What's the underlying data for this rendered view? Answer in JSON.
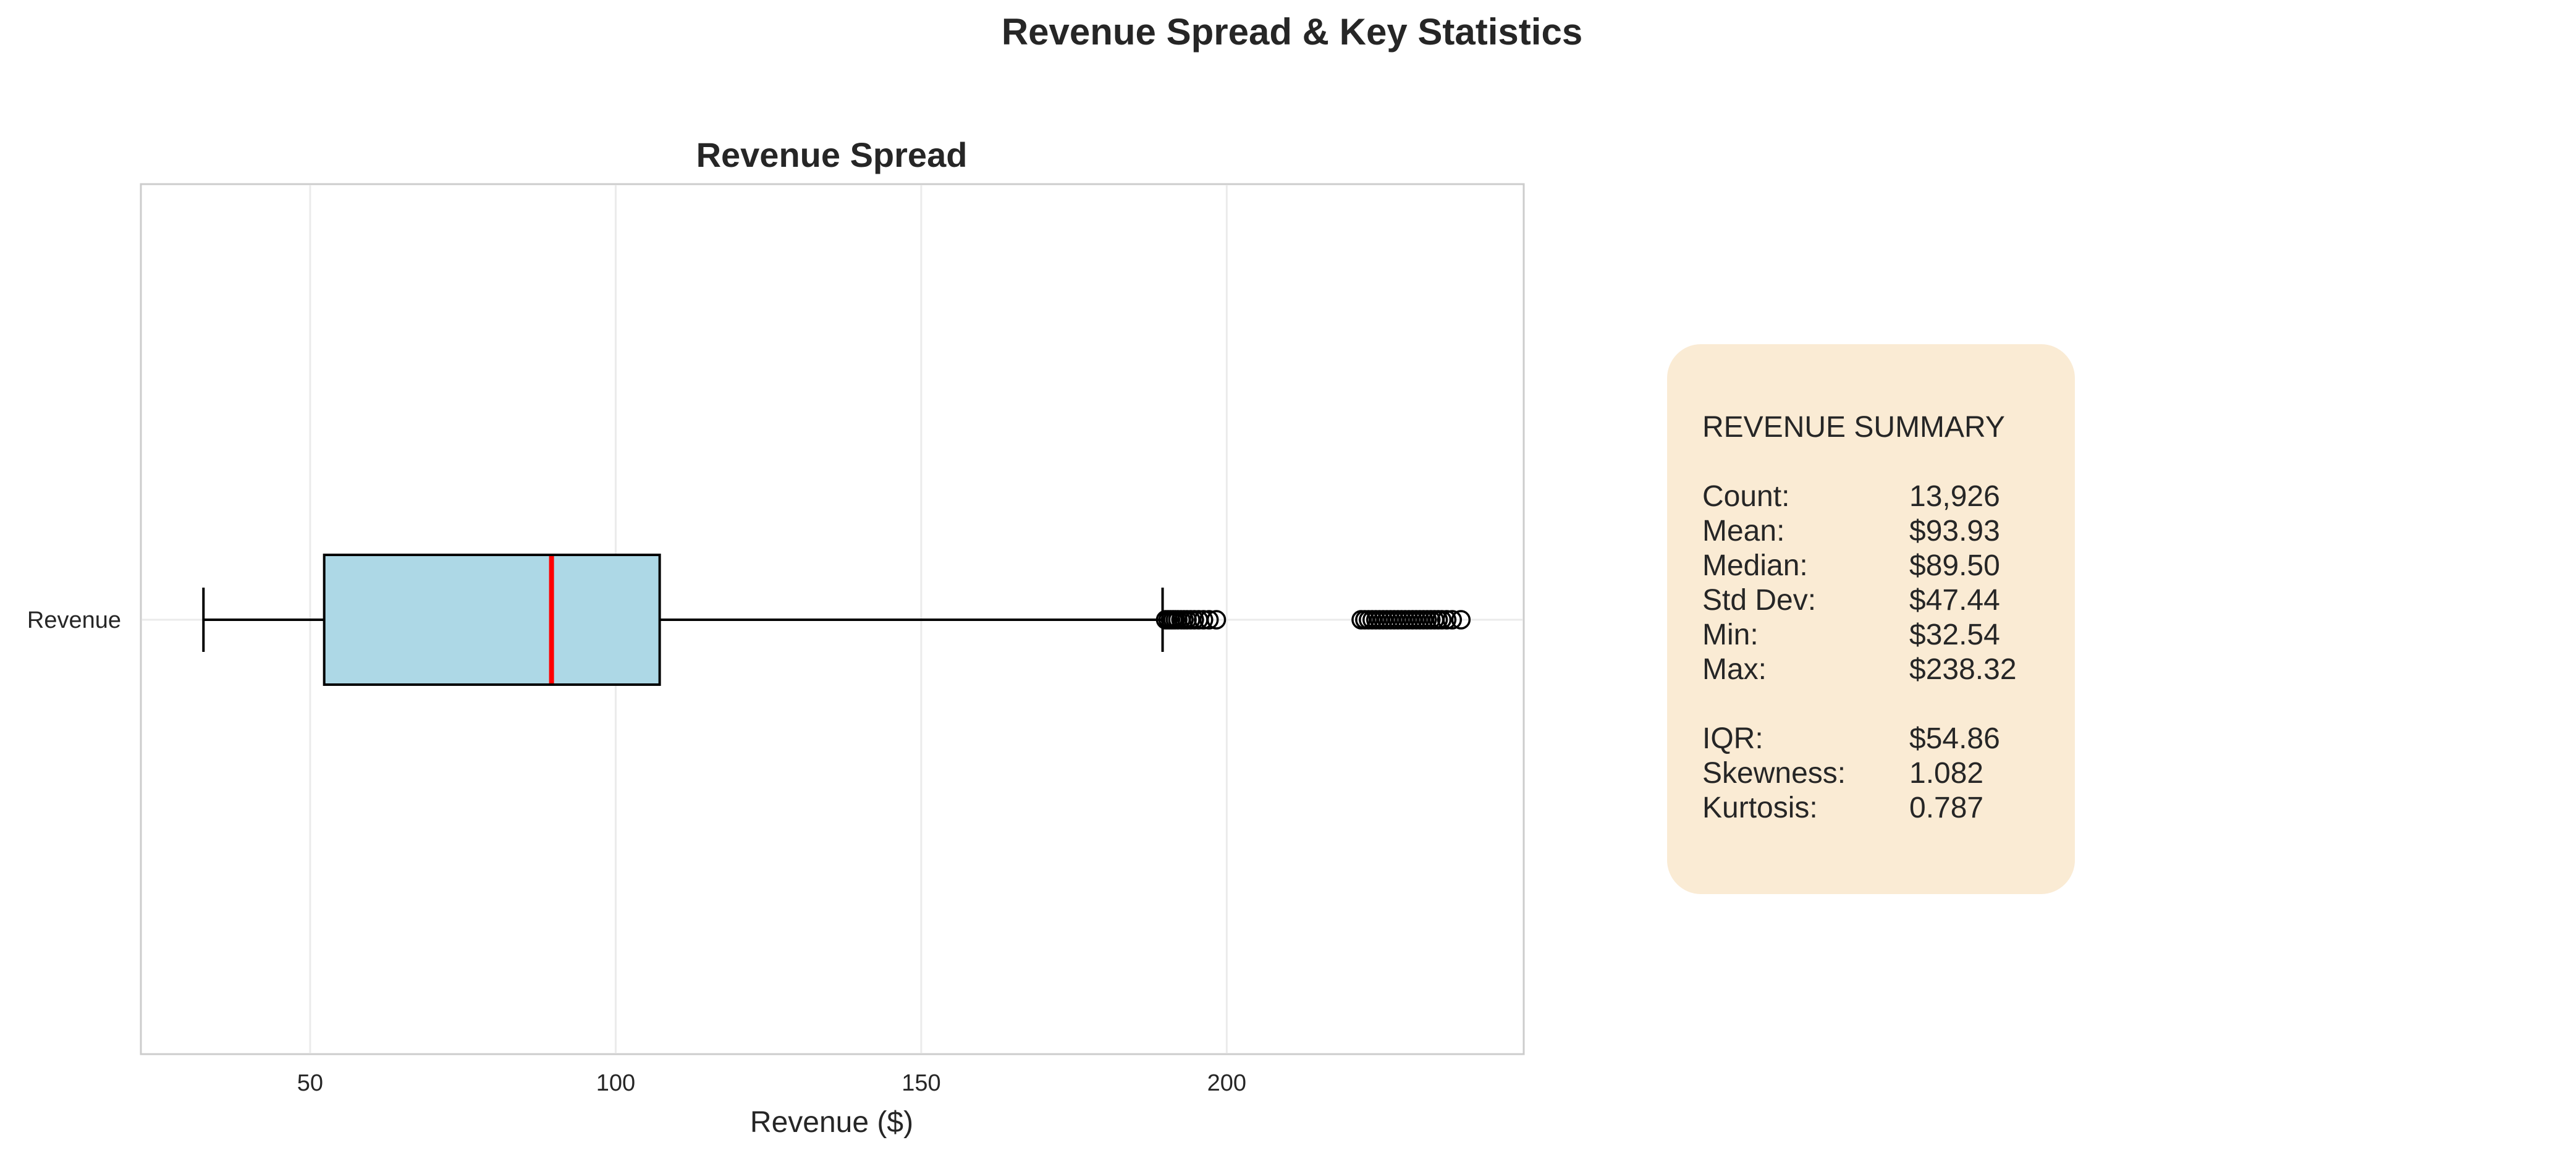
{
  "chart_data": {
    "type": "box",
    "title": "Revenue Spread & Key Statistics",
    "subplot_title": "Revenue Spread",
    "orientation": "horizontal",
    "category": "Revenue",
    "xlabel": "Revenue ($)",
    "xlim": [
      22.3,
      248.6
    ],
    "xticks": [
      50,
      100,
      150,
      200
    ],
    "grid": "vertical",
    "box": {
      "whisker_low": 32.54,
      "q1": 52.3,
      "median": 89.5,
      "q3": 107.2,
      "whisker_high": 189.5
    },
    "outliers": [
      190.0,
      190.4,
      190.8,
      191.2,
      191.6,
      192.0,
      192.5,
      193.0,
      193.5,
      194.1,
      194.7,
      195.4,
      196.2,
      197.1,
      198.3,
      222.0,
      222.6,
      223.2,
      223.8,
      224.4,
      225.0,
      225.6,
      226.2,
      226.8,
      227.4,
      228.0,
      228.6,
      229.2,
      229.8,
      230.4,
      231.0,
      231.6,
      232.2,
      232.8,
      233.4,
      234.0,
      234.6,
      235.2,
      236.0,
      236.9,
      238.32
    ],
    "colors": {
      "box_fill": "#add8e6",
      "median_line": "#ff0000",
      "box_edge": "#000000",
      "grid": "#ebebeb",
      "panel_bg": "#faebd4"
    }
  },
  "summary": {
    "heading": "REVENUE SUMMARY",
    "rows1": [
      {
        "label": "Count:",
        "value": "13,926"
      },
      {
        "label": "Mean:",
        "value": "$93.93"
      },
      {
        "label": "Median:",
        "value": "$89.50"
      },
      {
        "label": "Std Dev:",
        "value": "$47.44"
      },
      {
        "label": "Min:",
        "value": "$32.54"
      },
      {
        "label": "Max:",
        "value": "$238.32"
      }
    ],
    "rows2": [
      {
        "label": "IQR:",
        "value": "$54.86"
      },
      {
        "label": "Skewness:",
        "value": "1.082"
      },
      {
        "label": "Kurtosis:",
        "value": "0.787"
      }
    ]
  }
}
